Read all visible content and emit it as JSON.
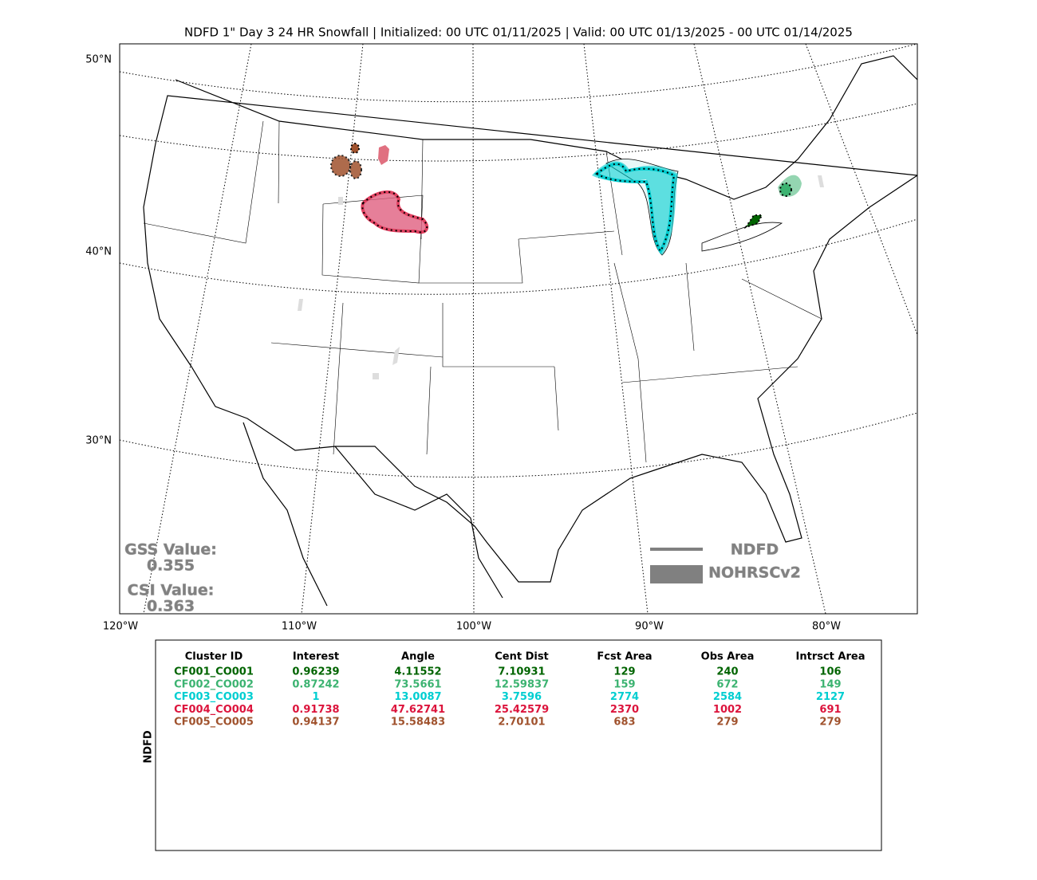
{
  "map": {
    "title": "NDFD 1\" Day 3 24 HR Snowfall | Initialized: 00 UTC 01/11/2025 | Valid: 00 UTC 01/13/2025 - 00 UTC 01/14/2025",
    "lat_labels": [
      "50°N",
      "40°N",
      "30°N"
    ],
    "lon_labels": [
      "120°W",
      "110°W",
      "100°W",
      "90°W",
      "80°W"
    ],
    "gss_label": "GSS Value:",
    "gss_value": "0.355",
    "csi_label": "CSI Value:",
    "csi_value": "0.363",
    "legend": [
      "NDFD",
      "NOHRSCv2"
    ]
  },
  "table": {
    "side_label": "NDFD",
    "columns": [
      "Cluster ID",
      "Interest",
      "Angle",
      "Cent Dist",
      "Fcst Area",
      "Obs Area",
      "Intrsct Area"
    ],
    "rows": [
      {
        "color": "#006400",
        "cells": [
          "CF001_CO001",
          "0.96239",
          "4.11552",
          "7.10931",
          "129",
          "240",
          "106"
        ]
      },
      {
        "color": "#3cb371",
        "cells": [
          "CF002_CO002",
          "0.87242",
          "73.5661",
          "12.59837",
          "159",
          "672",
          "149"
        ]
      },
      {
        "color": "#00ced1",
        "cells": [
          "CF003_CO003",
          "1",
          "13.0087",
          "3.7596",
          "2774",
          "2584",
          "2127"
        ]
      },
      {
        "color": "#dc143c",
        "cells": [
          "CF004_CO004",
          "0.91738",
          "47.62741",
          "25.42579",
          "2370",
          "1002",
          "691"
        ]
      },
      {
        "color": "#a0522d",
        "cells": [
          "CF005_CO005",
          "0.94137",
          "15.58483",
          "2.70101",
          "683",
          "279",
          "279"
        ]
      }
    ]
  }
}
